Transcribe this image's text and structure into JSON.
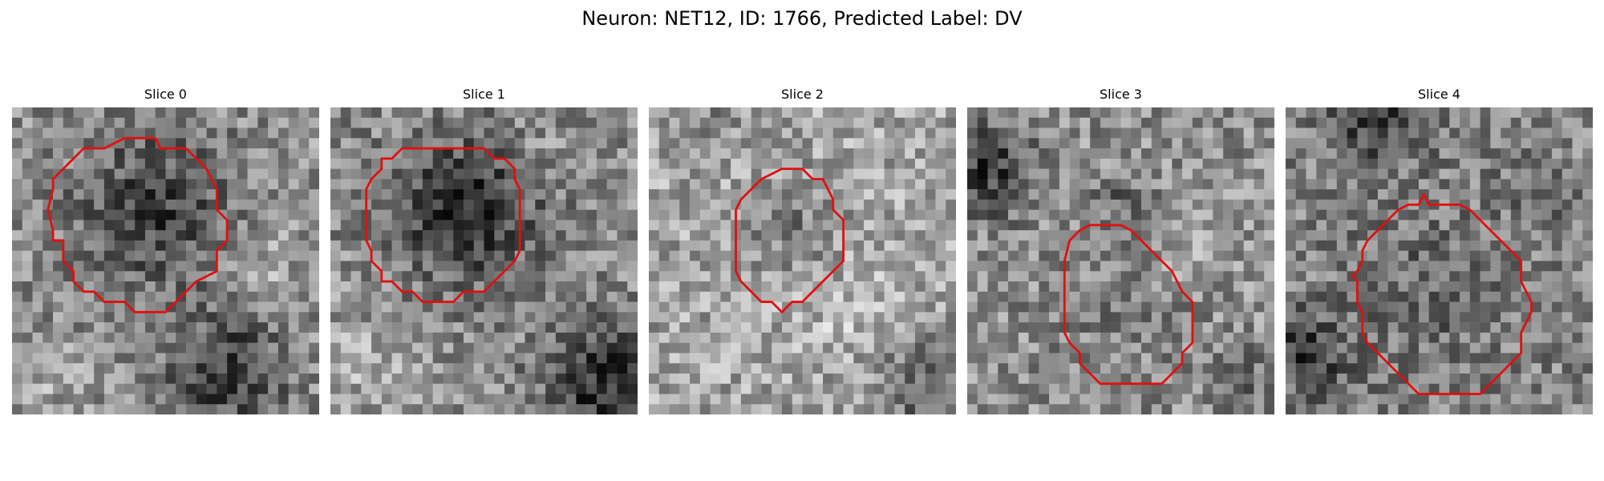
{
  "figure": {
    "title": "Neuron: NET12, ID: 1766, Predicted Label: DV"
  },
  "colors": {
    "contour": "#e01010",
    "background": "#ffffff",
    "colormap": "grayscale"
  },
  "slices": [
    {
      "title": "Slice 0"
    },
    {
      "title": "Slice 1"
    },
    {
      "title": "Slice 2"
    },
    {
      "title": "Slice 3"
    },
    {
      "title": "Slice 4"
    }
  ]
}
